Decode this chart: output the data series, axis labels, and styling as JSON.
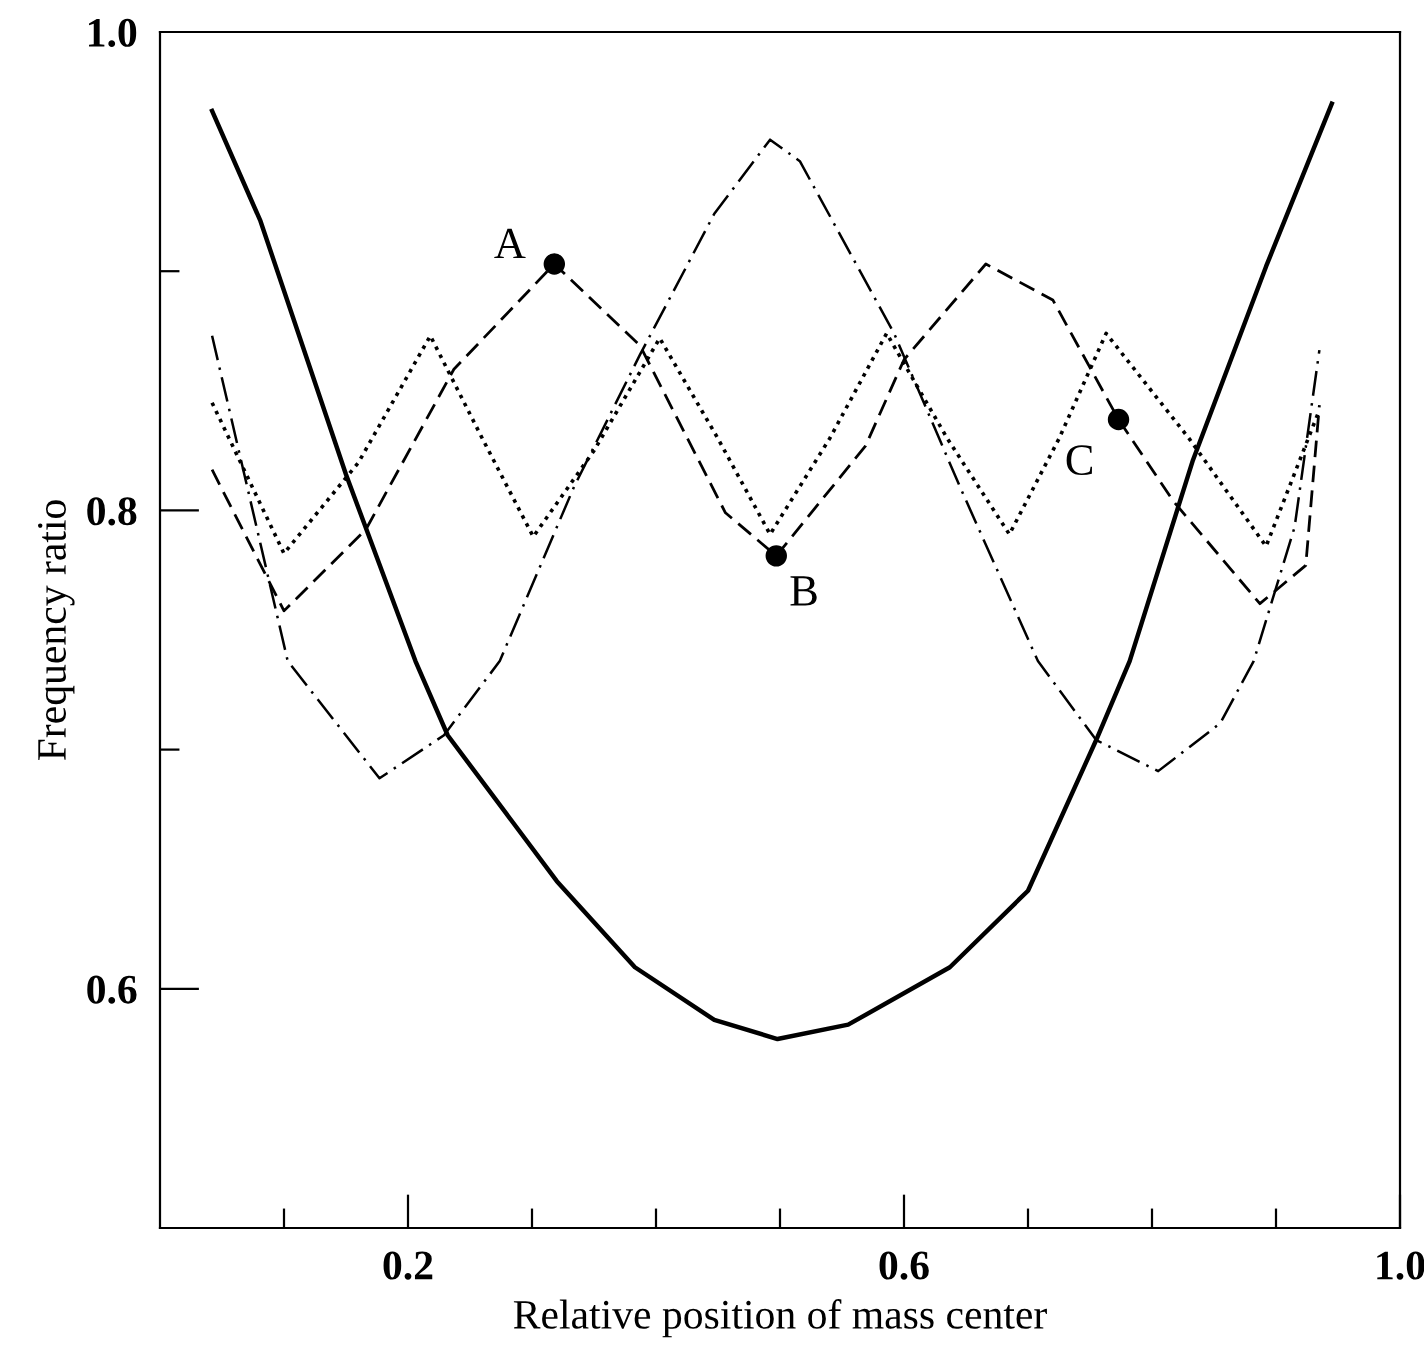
{
  "chart_data": {
    "type": "line",
    "xlabel": "Relative position of mass center",
    "ylabel": "Frequency ratio",
    "xlim": [
      0,
      1.0
    ],
    "ylim": [
      0.5,
      1.0
    ],
    "xticks": [
      {
        "value": 0.1,
        "label": null
      },
      0.2,
      {
        "value": 0.3,
        "label": null
      },
      {
        "value": 0.4,
        "label": null
      },
      {
        "value": 0.5,
        "label": null
      },
      0.6,
      {
        "value": 0.7,
        "label": null
      },
      {
        "value": 0.8,
        "label": null
      },
      {
        "value": 0.9,
        "label": null
      },
      {
        "value": 1.0,
        "label": "1.0"
      }
    ],
    "yticks": [
      0.6,
      {
        "value": 0.7,
        "label": null
      },
      0.8,
      {
        "value": 0.9,
        "label": null
      },
      {
        "value": 1.0,
        "label": "1.0"
      }
    ],
    "grid": false,
    "marker": "none",
    "series": [
      {
        "color": "#000000",
        "line_style": "solid",
        "x": [
          0.042,
          0.081,
          0.15,
          0.206,
          0.232,
          0.32,
          0.383,
          0.447,
          0.498,
          0.555,
          0.637,
          0.7,
          0.755,
          0.782,
          0.833,
          0.892,
          0.945
        ],
        "values": [
          0.967,
          0.921,
          0.815,
          0.737,
          0.706,
          0.645,
          0.609,
          0.587,
          0.579,
          0.585,
          0.609,
          0.641,
          0.704,
          0.737,
          0.821,
          0.902,
          0.97
        ]
      },
      {
        "color": "#000000",
        "line_style": "dashed",
        "x": [
          0.042,
          0.1,
          0.166,
          0.237,
          0.318,
          0.387,
          0.456,
          0.497,
          0.569,
          0.6,
          0.666,
          0.72,
          0.773,
          0.817,
          0.887,
          0.924,
          0.935
        ],
        "values": [
          0.817,
          0.758,
          0.792,
          0.859,
          0.903,
          0.869,
          0.799,
          0.781,
          0.827,
          0.863,
          0.903,
          0.888,
          0.838,
          0.804,
          0.761,
          0.777,
          0.844
        ]
      },
      {
        "color": "#000000",
        "line_style": "dotted",
        "x": [
          0.042,
          0.1,
          0.16,
          0.218,
          0.26,
          0.301,
          0.35,
          0.403,
          0.45,
          0.492,
          0.54,
          0.586,
          0.635,
          0.685,
          0.725,
          0.763,
          0.83,
          0.892,
          0.935
        ],
        "values": [
          0.845,
          0.782,
          0.82,
          0.873,
          0.83,
          0.789,
          0.825,
          0.872,
          0.83,
          0.79,
          0.83,
          0.874,
          0.83,
          0.79,
          0.83,
          0.874,
          0.83,
          0.785,
          0.842
        ]
      },
      {
        "color": "#000000",
        "line_style": "dashdot",
        "x": [
          0.042,
          0.103,
          0.177,
          0.229,
          0.274,
          0.334,
          0.387,
          0.447,
          0.492,
          0.516,
          0.592,
          0.645,
          0.708,
          0.755,
          0.805,
          0.855,
          0.882,
          0.915,
          0.935
        ],
        "values": [
          0.873,
          0.737,
          0.688,
          0.706,
          0.737,
          0.81,
          0.865,
          0.924,
          0.955,
          0.946,
          0.874,
          0.81,
          0.737,
          0.704,
          0.691,
          0.711,
          0.737,
          0.793,
          0.867
        ]
      },
      {
        "type": "scatter",
        "color": "#000000",
        "marker": "circle",
        "x": [
          0.318,
          0.497,
          0.773
        ],
        "values": [
          0.903,
          0.781,
          0.838
        ]
      }
    ],
    "annotations": [
      {
        "text": "A",
        "x": 0.318,
        "y": 0.903
      },
      {
        "text": "B",
        "x": 0.497,
        "y": 0.781
      },
      {
        "text": "C",
        "x": 0.773,
        "y": 0.838
      }
    ]
  }
}
